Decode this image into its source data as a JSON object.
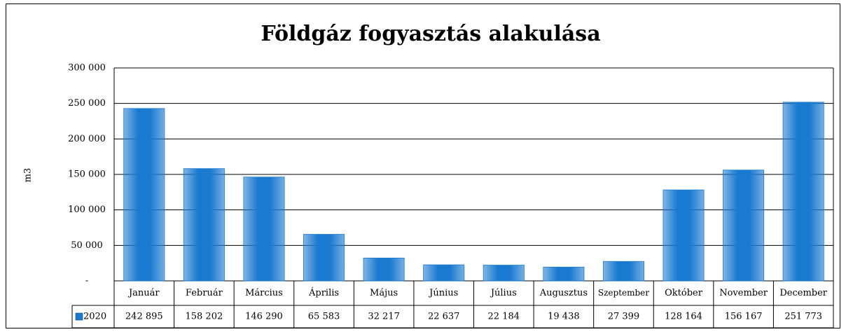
{
  "chart_data": {
    "type": "bar",
    "title": "Földgáz fogyasztás alakulása",
    "y_label": "m3",
    "categories": [
      "Január",
      "Február",
      "Március",
      "Április",
      "Május",
      "Június",
      "Július",
      "Augusztus",
      "Szeptember",
      "Október",
      "November",
      "December"
    ],
    "series": [
      {
        "name": "2020",
        "color": "#1a7ad0",
        "values": [
          242895,
          158202,
          146290,
          65583,
          32217,
          22637,
          22184,
          19438,
          27399,
          128164,
          156167,
          251773
        ],
        "value_labels": [
          "242 895",
          "158 202",
          "146 290",
          "65 583",
          "32 217",
          "22 637",
          "22 184",
          "19 438",
          "27 399",
          "128 164",
          "156 167",
          "251 773"
        ]
      }
    ],
    "ylim": [
      0,
      300000
    ],
    "yticks": [
      {
        "value": 0,
        "label": "-"
      },
      {
        "value": 50000,
        "label": "50 000"
      },
      {
        "value": 100000,
        "label": "100 000"
      },
      {
        "value": 150000,
        "label": "150 000"
      },
      {
        "value": 200000,
        "label": "200 000"
      },
      {
        "value": 250000,
        "label": "250 000"
      },
      {
        "value": 300000,
        "label": "300 000"
      }
    ],
    "grid": true,
    "legend": "table"
  }
}
